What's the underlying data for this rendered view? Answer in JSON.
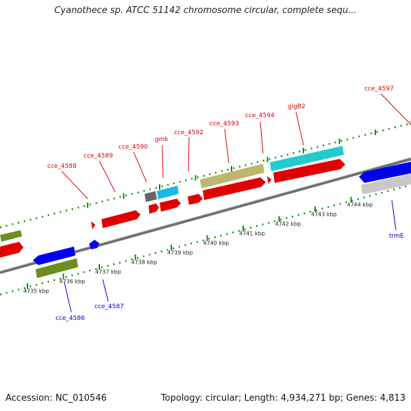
{
  "title": "Cyanothece sp. ATCC 51142 chromosome circular, complete sequ...",
  "footer": {
    "accession": "Accession: NC_010546",
    "topology": "Topology: circular; Length: 4,934,271 bp; Genes: 4,813"
  },
  "colors": {
    "plus_label": "#dd0000",
    "minus_label": "#0000cc",
    "tick": "#118811",
    "backbone": "#888888"
  },
  "scale_ticks": [
    "4735 kbp",
    "4736 kbp",
    "4737 kbp",
    "4738 kbp",
    "4739 kbp",
    "4740 kbp",
    "4741 kbp",
    "4742 kbp",
    "4743 kbp",
    "4744 kbp"
  ],
  "plus_labels": [
    "cce_4588",
    "cce_4589",
    "cce_4590",
    "gmk",
    "cce_4592",
    "cce_4593",
    "cce_4594",
    "glgB2",
    "cce_4597"
  ],
  "minus_labels": [
    "cce_4586",
    "cce_4587",
    "trmE"
  ]
}
